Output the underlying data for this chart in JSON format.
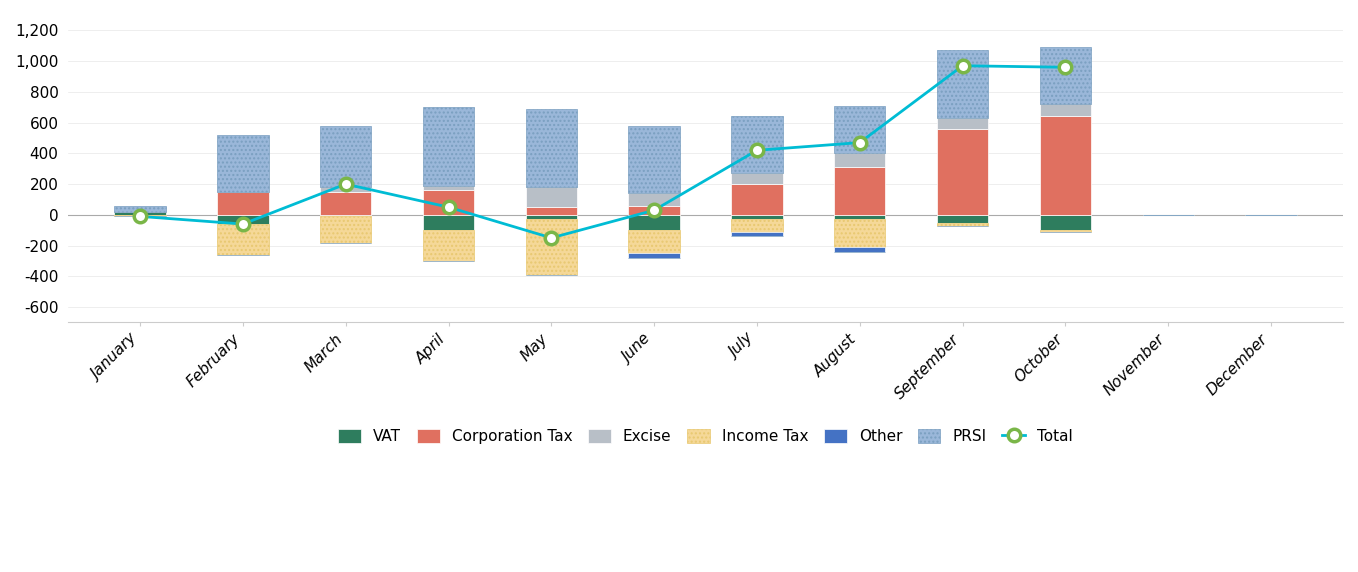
{
  "months": [
    "January",
    "February",
    "March",
    "April",
    "May",
    "June",
    "July",
    "August",
    "September",
    "October",
    "November",
    "December"
  ],
  "categories": [
    "VAT",
    "Corporation Tax",
    "Excise",
    "Income Tax",
    "Other",
    "PRSI"
  ],
  "colors": {
    "VAT": "#2e7d5e",
    "Corporation Tax": "#e07060",
    "Excise": "#b8bfc7",
    "Income Tax": "#f5d898",
    "Other": "#4472c4",
    "PRSI": "#9ab7d9"
  },
  "data": {
    "VAT": [
      20,
      -60,
      -10,
      -100,
      -30,
      -100,
      -30,
      -30,
      -50,
      -100,
      0,
      0
    ],
    "Corporation Tax": [
      0,
      150,
      150,
      160,
      50,
      60,
      200,
      310,
      560,
      640,
      0,
      0
    ],
    "Excise": [
      0,
      0,
      30,
      30,
      130,
      80,
      70,
      90,
      70,
      80,
      0,
      0
    ],
    "Income Tax": [
      -10,
      -200,
      -170,
      -200,
      -360,
      -150,
      -80,
      -180,
      -20,
      -10,
      0,
      0
    ],
    "Other": [
      0,
      0,
      0,
      0,
      0,
      -30,
      -30,
      -30,
      0,
      0,
      0,
      0
    ],
    "PRSI": [
      40,
      370,
      400,
      510,
      510,
      440,
      370,
      310,
      440,
      370,
      0,
      0
    ]
  },
  "total_line": [
    -10,
    -60,
    200,
    50,
    -150,
    30,
    420,
    470,
    970,
    960,
    null,
    null
  ],
  "line_color": "#00bcd4",
  "line_marker_facecolor": "#ffffff",
  "line_marker_edgecolor": "#7ab648",
  "ylim": [
    -700,
    1300
  ],
  "yticks": [
    -600,
    -400,
    -200,
    0,
    200,
    400,
    600,
    800,
    1000,
    1200
  ],
  "background_color": "#ffffff",
  "legend_labels": [
    "VAT",
    "Corporation Tax",
    "Excise",
    "Income Tax",
    "Other",
    "PRSI",
    "Total"
  ]
}
